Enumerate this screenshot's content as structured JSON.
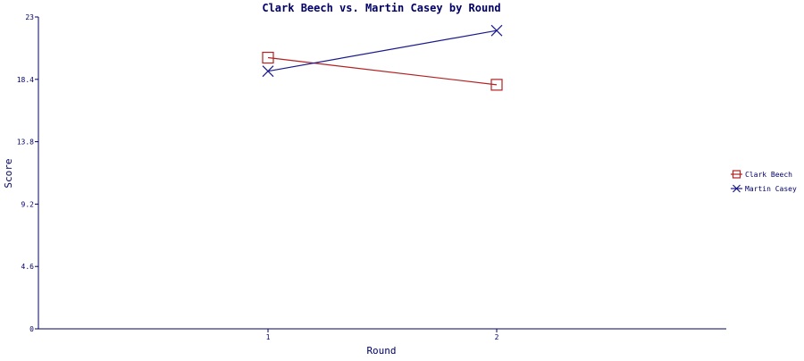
{
  "chart_data": {
    "type": "line",
    "title": "Clark Beech vs. Martin Casey by Round",
    "xlabel": "Round",
    "ylabel": "Score",
    "categories": [
      "1",
      "2"
    ],
    "ylim": [
      0,
      23
    ],
    "yticks": [
      "0",
      "4.6",
      "9.2",
      "13.8",
      "18.4",
      "23"
    ],
    "grid": false,
    "legend_position": "right",
    "series": [
      {
        "name": "Clark Beech",
        "color": "#b22222",
        "marker": "square",
        "values": [
          20.0,
          18.0
        ]
      },
      {
        "name": "Martin Casey",
        "color": "#1a1a8c",
        "marker": "x",
        "values": [
          19.0,
          22.0
        ]
      }
    ],
    "colors": {
      "title": "#000066",
      "axis": "#000066",
      "text": "#000066"
    }
  }
}
